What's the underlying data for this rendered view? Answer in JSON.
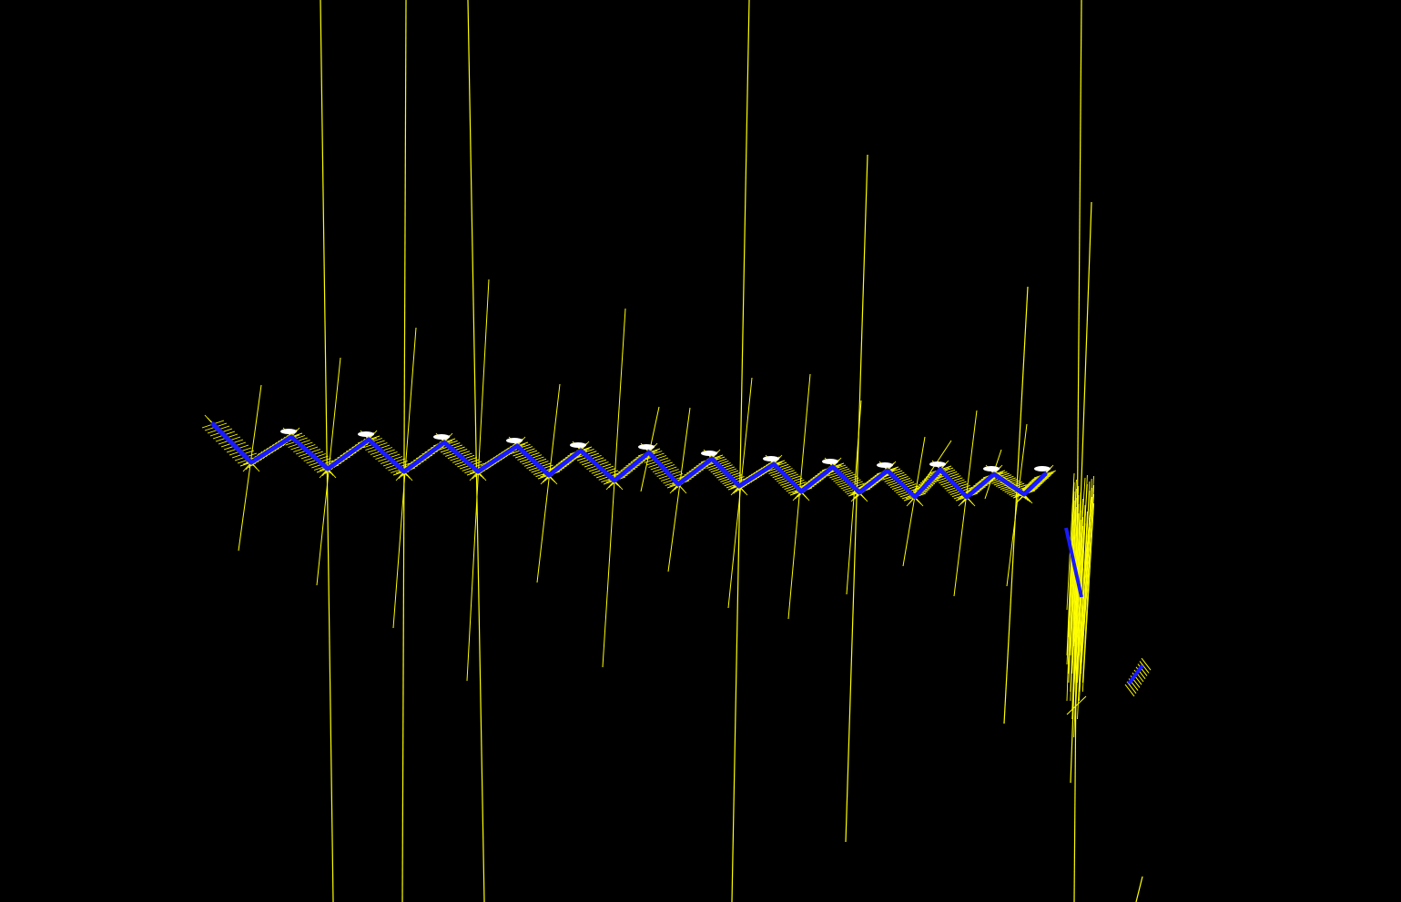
{
  "scene": {
    "background_color": "#000000",
    "colors": {
      "normal_lines": "#ffff00",
      "main_curve": "#1a1aff",
      "highlight": "#ffffff"
    },
    "elements": [
      "zigzag-point-cloud-strip",
      "vertical-normal-lines",
      "right-edge-cluster",
      "small-isolated-fragment"
    ]
  }
}
